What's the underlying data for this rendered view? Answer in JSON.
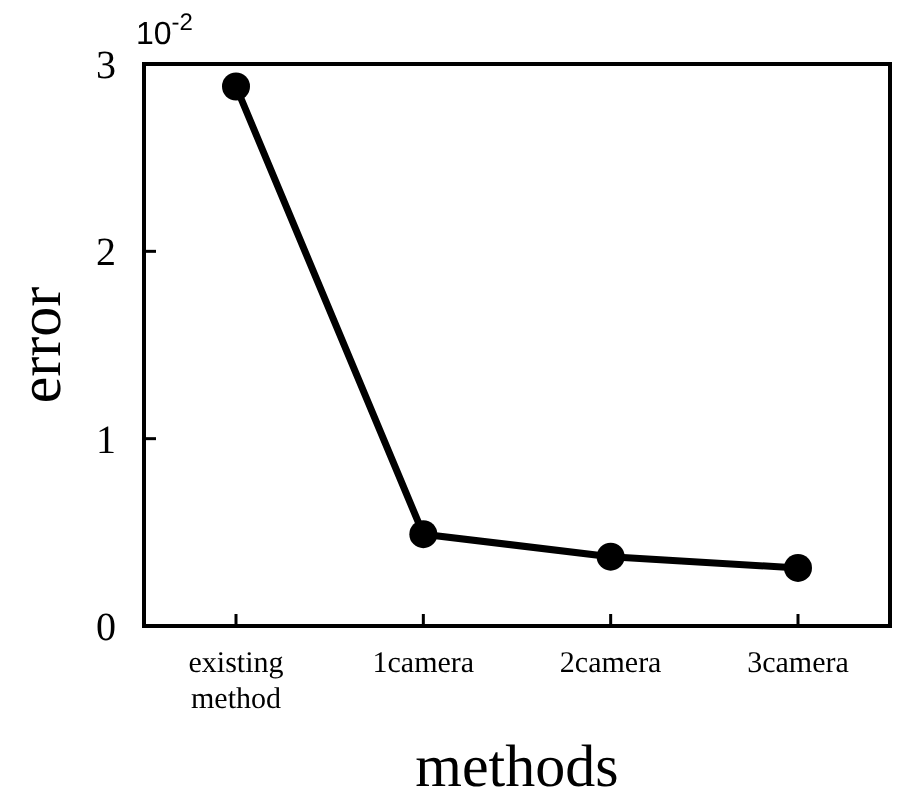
{
  "chart_data": {
    "type": "line",
    "xlabel": "methods",
    "ylabel": "error",
    "annotations": [
      "10$^{-2}$"
    ],
    "categories": [
      "existing method",
      "1camera",
      "2camera",
      "3camera"
    ],
    "series": [
      {
        "color": "#000000",
        "values": [
          2.88,
          0.49,
          0.37,
          0.31
        ]
      }
    ],
    "ylim": [
      0,
      3
    ],
    "yticks": [
      0,
      1,
      2,
      3
    ],
    "marker": "circle",
    "line_style": "solid",
    "grid": false
  }
}
